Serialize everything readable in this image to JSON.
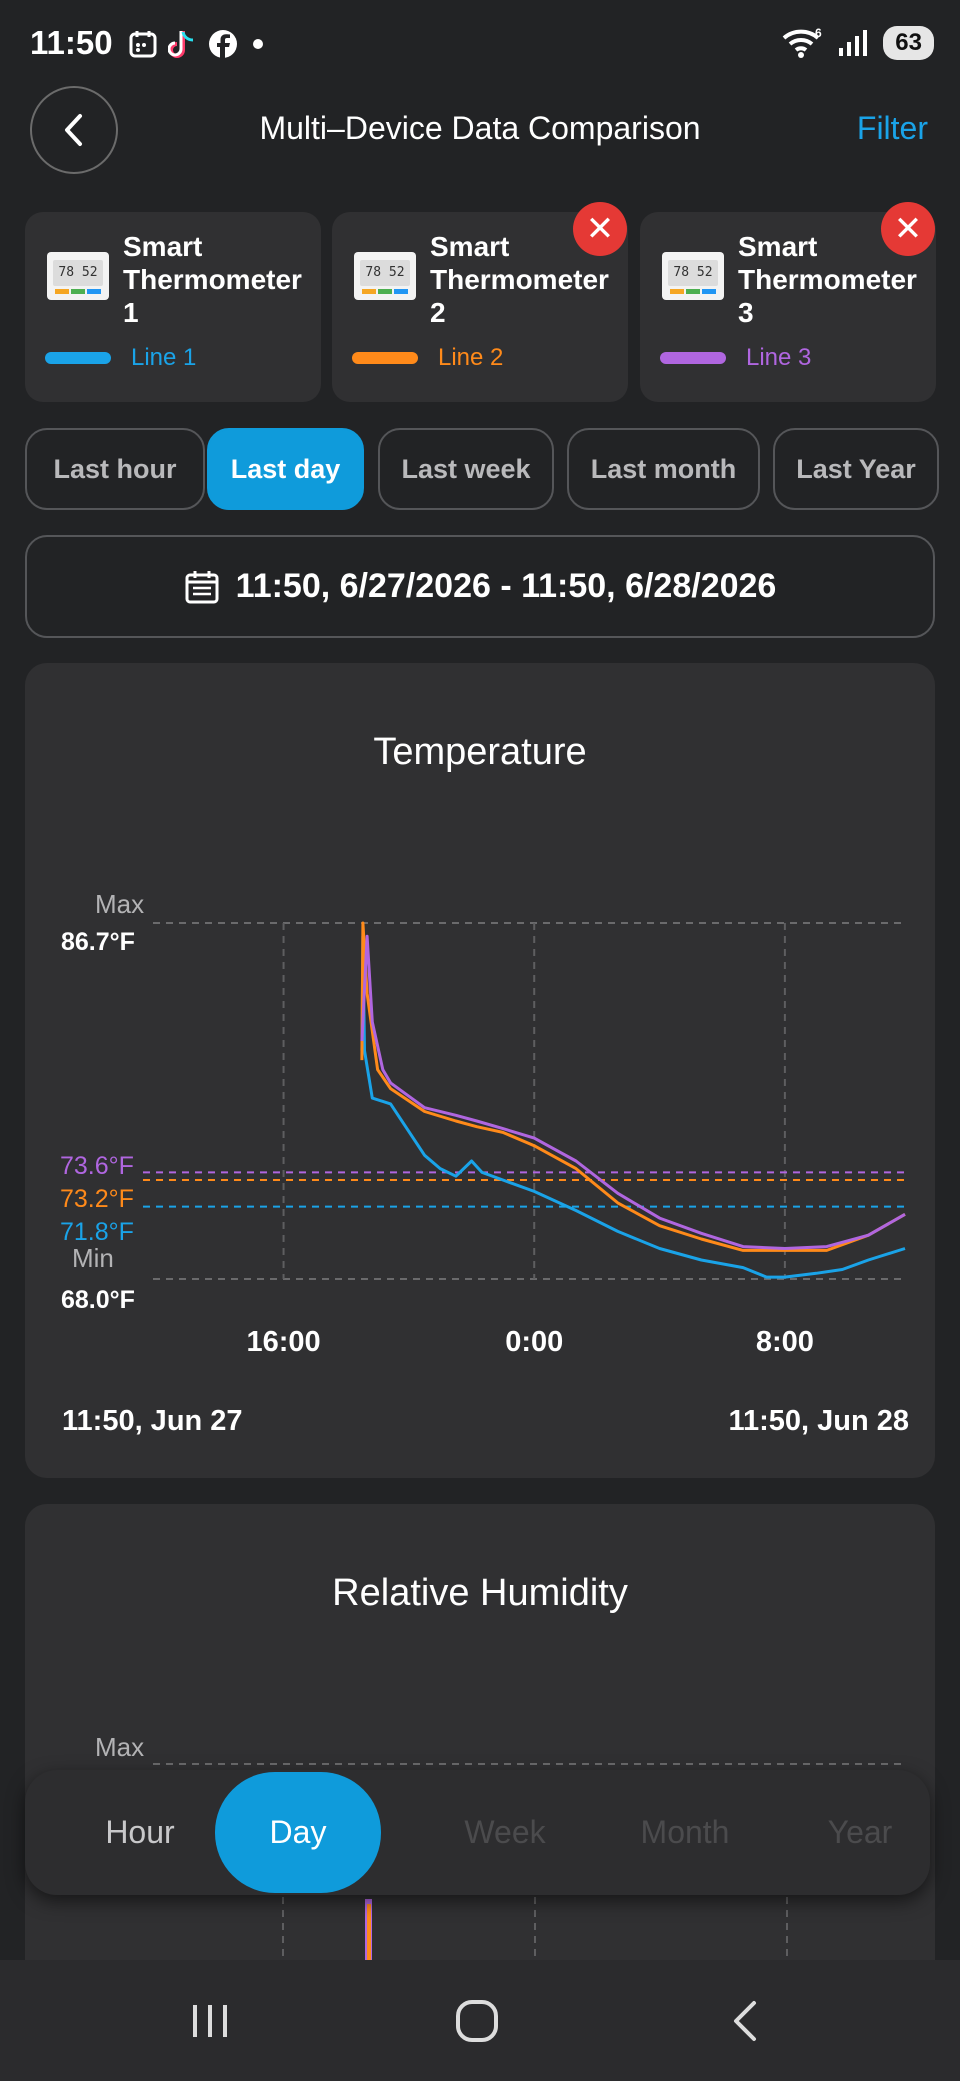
{
  "status_bar": {
    "time": "11:50",
    "battery": "63",
    "signal_label": "6",
    "notification_icons": [
      "calendar-icon",
      "tiktok-icon",
      "facebook-icon",
      "dot-icon"
    ]
  },
  "header": {
    "title": "Multi–Device Data Comparison",
    "filter_label": "Filter"
  },
  "devices": [
    {
      "name": "Smart Thermometer 1",
      "line_label": "Line 1",
      "color": "#1aa3e8",
      "thumb_value": "78 52",
      "removable": false
    },
    {
      "name": "Smart Thermometer 2",
      "line_label": "Line 2",
      "color": "#ff8a1a",
      "thumb_value": "78 52",
      "removable": true
    },
    {
      "name": "Smart Thermometer 3",
      "line_label": "Line 3",
      "color": "#b066e0",
      "thumb_value": "78 52",
      "removable": true
    }
  ],
  "remove_glyph": "✕",
  "period_tabs": [
    {
      "label": "Last hour",
      "active": false
    },
    {
      "label": "Last day",
      "active": true
    },
    {
      "label": "Last week",
      "active": false
    },
    {
      "label": "Last month",
      "active": false
    },
    {
      "label": "Last Year",
      "active": false
    }
  ],
  "date_range": "11:50, 6/27/2026 - 11:50, 6/28/2026",
  "charts": {
    "temperature": {
      "title": "Temperature",
      "max_label": "Max",
      "max_value": "86.7°F",
      "min_label": "Min",
      "min_value": "68.0°F",
      "start_label": "11:50, Jun 27",
      "end_label": "11:50, Jun 28",
      "series_markers": [
        {
          "text": "73.6°F",
          "color": "#b066e0"
        },
        {
          "text": "73.2°F",
          "color": "#ff8a1a"
        },
        {
          "text": "71.8°F",
          "color": "#1aa3e8"
        }
      ]
    },
    "humidity": {
      "title": "Relative Humidity",
      "max_label": "Max"
    }
  },
  "chart_data": {
    "type": "line",
    "title": "Temperature",
    "xlabel": "",
    "ylabel": "",
    "x_range": [
      "2026-06-27 11:50",
      "2026-06-28 11:50"
    ],
    "x_tick_labels": [
      "16:00",
      "0:00",
      "8:00"
    ],
    "x_ticks": [
      "2026-06-27 16:00",
      "2026-06-28 00:00",
      "2026-06-28 08:00"
    ],
    "ylim": [
      68.0,
      86.7
    ],
    "grid": true,
    "series": [
      {
        "name": "Line 1",
        "color": "#1aa3e8",
        "reference_value": 71.8,
        "points": [
          [
            "2026-06-27 18:30",
            80.0
          ],
          [
            "2026-06-27 18:32",
            86.0
          ],
          [
            "2026-06-27 18:35",
            80.0
          ],
          [
            "2026-06-27 18:50",
            77.5
          ],
          [
            "2026-06-27 19:25",
            77.2
          ],
          [
            "2026-06-27 20:30",
            74.5
          ],
          [
            "2026-06-27 21:00",
            73.8
          ],
          [
            "2026-06-27 21:30",
            73.4
          ],
          [
            "2026-06-27 22:00",
            74.2
          ],
          [
            "2026-06-27 22:20",
            73.6
          ],
          [
            "2026-06-27 23:00",
            73.2
          ],
          [
            "2026-06-28 00:00",
            72.6
          ],
          [
            "2026-06-28 01:20",
            71.6
          ],
          [
            "2026-06-28 02:40",
            70.5
          ],
          [
            "2026-06-28 04:00",
            69.6
          ],
          [
            "2026-06-28 05:20",
            69.0
          ],
          [
            "2026-06-28 06:40",
            68.6
          ],
          [
            "2026-06-28 07:25",
            68.1
          ],
          [
            "2026-06-28 08:00",
            68.1
          ],
          [
            "2026-06-28 09:00",
            68.3
          ],
          [
            "2026-06-28 09:50",
            68.5
          ],
          [
            "2026-06-28 10:40",
            69.0
          ],
          [
            "2026-06-28 11:50",
            69.6
          ]
        ]
      },
      {
        "name": "Line 2",
        "color": "#ff8a1a",
        "reference_value": 73.2,
        "points": [
          [
            "2026-06-27 18:30",
            79.5
          ],
          [
            "2026-06-27 18:32",
            86.7
          ],
          [
            "2026-06-27 18:40",
            83.0
          ],
          [
            "2026-06-27 19:00",
            79.0
          ],
          [
            "2026-06-27 19:25",
            78.0
          ],
          [
            "2026-06-27 20:30",
            76.8
          ],
          [
            "2026-06-27 21:30",
            76.3
          ],
          [
            "2026-06-27 22:10",
            76.0
          ],
          [
            "2026-06-27 23:00",
            75.7
          ],
          [
            "2026-06-28 00:00",
            75.0
          ],
          [
            "2026-06-28 01:20",
            73.8
          ],
          [
            "2026-06-28 02:40",
            72.0
          ],
          [
            "2026-06-28 04:00",
            70.8
          ],
          [
            "2026-06-28 05:20",
            70.1
          ],
          [
            "2026-06-28 06:40",
            69.5
          ],
          [
            "2026-06-28 08:00",
            69.5
          ],
          [
            "2026-06-28 09:20",
            69.5
          ],
          [
            "2026-06-28 10:40",
            70.3
          ],
          [
            "2026-06-28 11:50",
            71.4
          ]
        ]
      },
      {
        "name": "Line 3",
        "color": "#b066e0",
        "reference_value": 73.6,
        "points": [
          [
            "2026-06-27 18:30",
            80.5
          ],
          [
            "2026-06-27 18:40",
            86.0
          ],
          [
            "2026-06-27 18:50",
            81.5
          ],
          [
            "2026-06-27 19:10",
            79.0
          ],
          [
            "2026-06-27 19:25",
            78.3
          ],
          [
            "2026-06-27 20:30",
            77.0
          ],
          [
            "2026-06-27 21:30",
            76.6
          ],
          [
            "2026-06-27 22:10",
            76.3
          ],
          [
            "2026-06-27 23:00",
            75.9
          ],
          [
            "2026-06-28 00:00",
            75.4
          ],
          [
            "2026-06-28 01:20",
            74.2
          ],
          [
            "2026-06-28 02:40",
            72.5
          ],
          [
            "2026-06-28 04:00",
            71.2
          ],
          [
            "2026-06-28 05:20",
            70.4
          ],
          [
            "2026-06-28 06:40",
            69.7
          ],
          [
            "2026-06-28 08:00",
            69.6
          ],
          [
            "2026-06-28 09:20",
            69.7
          ],
          [
            "2026-06-28 10:40",
            70.3
          ],
          [
            "2026-06-28 11:50",
            71.4
          ]
        ]
      }
    ]
  },
  "bottom_tabs": [
    {
      "label": "Hour",
      "active": false
    },
    {
      "label": "Day",
      "active": true
    },
    {
      "label": "Week",
      "active": false
    },
    {
      "label": "Month",
      "active": false
    },
    {
      "label": "Year",
      "active": false
    }
  ],
  "nav_bar": {
    "buttons": [
      "recent-apps-icon",
      "home-icon",
      "back-icon"
    ]
  }
}
